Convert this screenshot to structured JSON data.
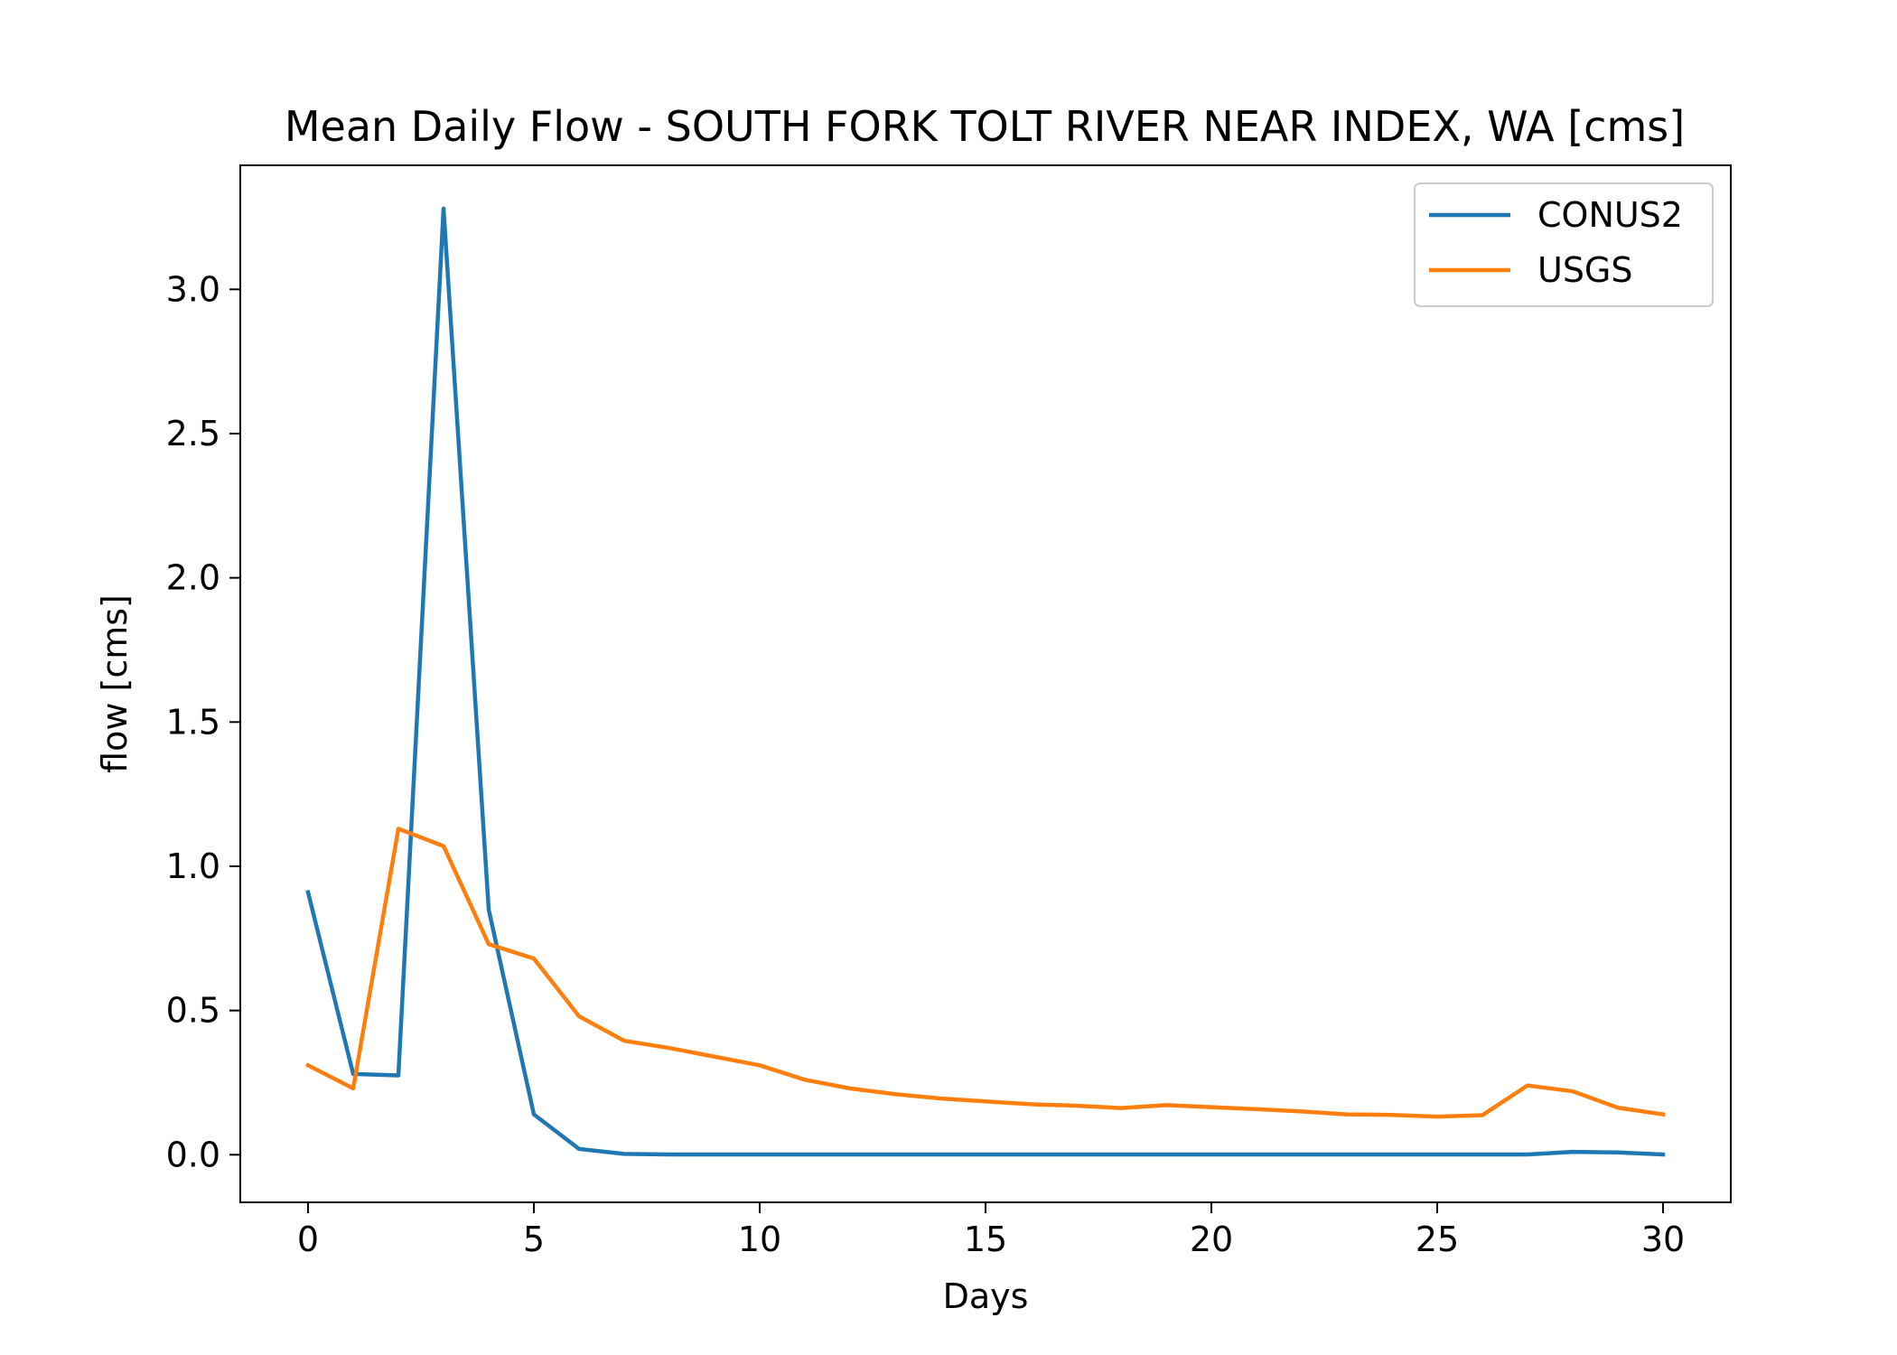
{
  "chart_data": {
    "type": "line",
    "title": "Mean Daily Flow - SOUTH FORK TOLT RIVER NEAR INDEX, WA [cms]",
    "xlabel": "Days",
    "ylabel": "flow [cms]",
    "xlim": [
      -1.5,
      31.5
    ],
    "ylim": [
      -0.165,
      3.43
    ],
    "xticks": [
      0,
      5,
      10,
      15,
      20,
      25,
      30
    ],
    "xtick_labels": [
      "0",
      "5",
      "10",
      "15",
      "20",
      "25",
      "30"
    ],
    "yticks": [
      0.0,
      0.5,
      1.0,
      1.5,
      2.0,
      2.5,
      3.0
    ],
    "ytick_labels": [
      "0.0",
      "0.5",
      "1.0",
      "1.5",
      "2.0",
      "2.5",
      "3.0"
    ],
    "grid": false,
    "legend_position": "top-right",
    "x": [
      0,
      1,
      2,
      3,
      4,
      5,
      6,
      7,
      8,
      9,
      10,
      11,
      12,
      13,
      14,
      15,
      16,
      17,
      18,
      19,
      20,
      21,
      22,
      23,
      24,
      25,
      26,
      27,
      28,
      29,
      30
    ],
    "series": [
      {
        "name": "CONUS2",
        "color": "#1f77b4",
        "values": [
          0.91,
          0.28,
          0.275,
          3.28,
          0.85,
          0.14,
          0.02,
          0.003,
          0.001,
          0.001,
          0.001,
          0.001,
          0.001,
          0.001,
          0.001,
          0.001,
          0.001,
          0.001,
          0.001,
          0.001,
          0.001,
          0.001,
          0.001,
          0.001,
          0.001,
          0.001,
          0.001,
          0.001,
          0.01,
          0.008,
          0.001
        ]
      },
      {
        "name": "USGS",
        "color": "#ff7f0e",
        "values": [
          0.31,
          0.23,
          1.13,
          1.07,
          0.73,
          0.68,
          0.48,
          0.395,
          0.37,
          0.34,
          0.31,
          0.26,
          0.23,
          0.21,
          0.195,
          0.185,
          0.175,
          0.17,
          0.162,
          0.172,
          0.165,
          0.158,
          0.15,
          0.14,
          0.138,
          0.132,
          0.137,
          0.24,
          0.22,
          0.163,
          0.14
        ]
      }
    ]
  }
}
